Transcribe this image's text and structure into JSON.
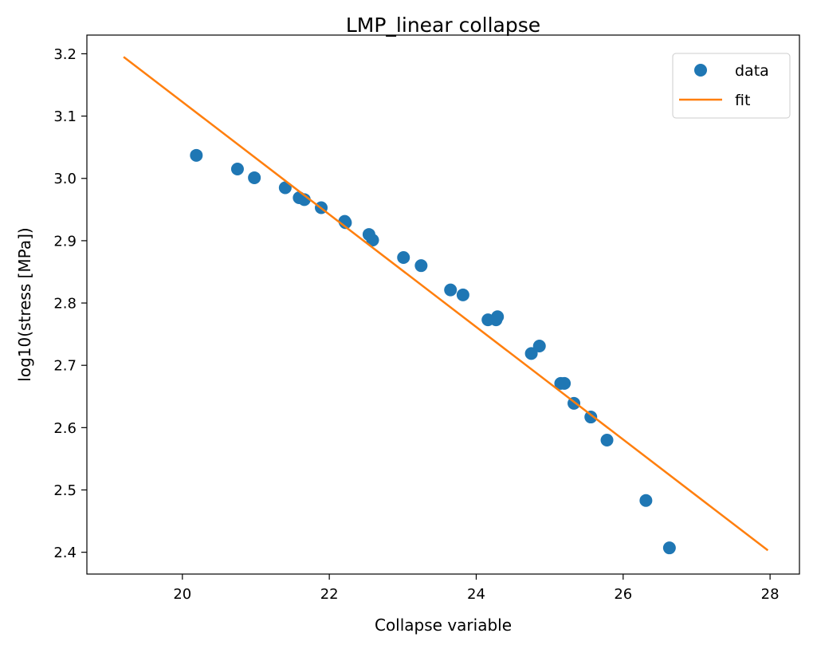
{
  "chart_data": {
    "type": "scatter",
    "title": "LMP_linear collapse",
    "xlabel": "Collapse variable",
    "ylabel": "log10(stress [MPa])",
    "xlim": [
      18.7,
      28.4
    ],
    "ylim": [
      2.365,
      3.23
    ],
    "xticks": [
      20,
      22,
      24,
      26,
      28
    ],
    "xtick_labels": [
      "20",
      "22",
      "24",
      "26",
      "28"
    ],
    "yticks": [
      2.4,
      2.5,
      2.6,
      2.7,
      2.8,
      2.9,
      3.0,
      3.1,
      3.2
    ],
    "ytick_labels": [
      "2.4",
      "2.5",
      "2.6",
      "2.7",
      "2.8",
      "2.9",
      "3.0",
      "3.1",
      "3.2"
    ],
    "grid": false,
    "legend_position": "top-right",
    "series": [
      {
        "name": "data",
        "kind": "scatter",
        "color": "#1f77b4",
        "x": [
          20.19,
          20.75,
          20.98,
          21.4,
          21.59,
          21.66,
          21.89,
          22.21,
          22.22,
          22.54,
          22.59,
          23.01,
          23.25,
          23.65,
          23.82,
          24.16,
          24.27,
          24.29,
          24.75,
          24.86,
          25.15,
          25.2,
          25.33,
          25.56,
          25.78,
          26.31,
          26.63
        ],
        "y": [
          3.037,
          3.015,
          3.001,
          2.985,
          2.969,
          2.966,
          2.953,
          2.931,
          2.929,
          2.91,
          2.901,
          2.873,
          2.86,
          2.821,
          2.813,
          2.773,
          2.773,
          2.778,
          2.719,
          2.731,
          2.671,
          2.671,
          2.639,
          2.617,
          2.58,
          2.483,
          2.407
        ]
      },
      {
        "name": "fit",
        "kind": "line",
        "color": "#ff7f0e",
        "x": [
          19.2,
          27.97
        ],
        "y": [
          3.195,
          2.403
        ]
      }
    ]
  }
}
